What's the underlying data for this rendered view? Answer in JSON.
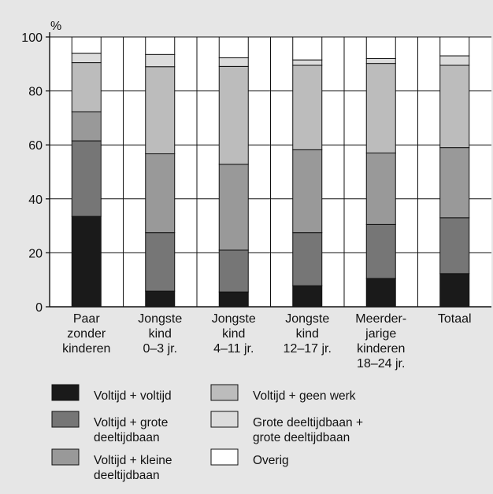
{
  "chart_data": {
    "type": "bar",
    "stacked": true,
    "y_unit_label": "%",
    "ylim": [
      0,
      100
    ],
    "y_ticks": [
      0,
      20,
      40,
      60,
      80,
      100
    ],
    "grid": true,
    "categories": [
      [
        "Paar",
        "zonder",
        "kinderen"
      ],
      [
        "Jongste",
        "kind",
        "0–3 jr."
      ],
      [
        "Jongste",
        "kind",
        "4–11 jr."
      ],
      [
        "Jongste",
        "kind",
        "12–17 jr."
      ],
      [
        "Meerder-",
        "jarige",
        "kinderen",
        "18–24 jr."
      ],
      [
        "Totaal"
      ]
    ],
    "series": [
      {
        "name": "Voltijd + voltijd",
        "color": "#1a1a1a",
        "values": [
          33.5,
          5.8,
          5.5,
          7.8,
          10.5,
          12.3
        ]
      },
      {
        "name": "Voltijd + grote deeltijdbaan",
        "color": "#767676",
        "values": [
          28,
          21.7,
          15.5,
          19.7,
          20,
          20.7
        ]
      },
      {
        "name": "Voltijd + kleine deeltijdbaan",
        "color": "#999999",
        "values": [
          10.8,
          29.2,
          31.8,
          30.7,
          26.5,
          26
        ]
      },
      {
        "name": "Voltijd + geen werk",
        "color": "#bcbcbc",
        "values": [
          18.2,
          32.3,
          36.3,
          31.3,
          33.2,
          30.5
        ]
      },
      {
        "name": "Grote deeltijdbaan + grote deeltijdbaan",
        "color": "#dcdcdc",
        "values": [
          3.5,
          4.5,
          3.2,
          2,
          1.8,
          3.5
        ]
      },
      {
        "name": "Overig",
        "color": "#ffffff",
        "values": [
          6,
          6.5,
          7.7,
          8.5,
          8,
          7
        ]
      }
    ],
    "legend": {
      "placement": "bottom",
      "entries": [
        {
          "lines": [
            "Voltijd + voltijd"
          ]
        },
        {
          "lines": [
            "Voltijd + grote",
            "deeltijdbaan"
          ]
        },
        {
          "lines": [
            "Voltijd + kleine",
            "deeltijdbaan"
          ]
        },
        {
          "lines": [
            "Voltijd + geen werk"
          ]
        },
        {
          "lines": [
            "Grote deeltijdbaan +",
            "grote deeltijdbaan"
          ]
        },
        {
          "lines": [
            "Overig"
          ]
        }
      ]
    }
  }
}
